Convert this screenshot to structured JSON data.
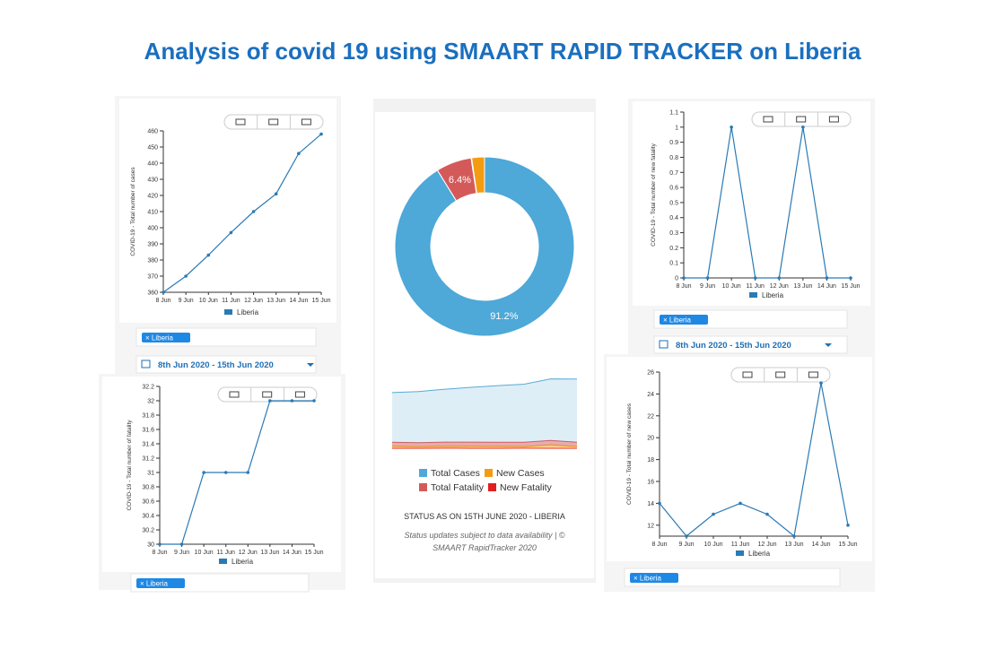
{
  "title": "Analysis of covid 19 using SMAART RAPID TRACKER on Liberia",
  "chart_data": [
    {
      "type": "line",
      "y_label": "COVID-19 - Total number of cases",
      "categories": [
        "8 Jun",
        "9 Jun",
        "10 Jun",
        "11 Jun",
        "12 Jun",
        "13 Jun",
        "14 Jun",
        "15 Jun"
      ],
      "series": [
        {
          "name": "Liberia",
          "color": "#2a7ab5",
          "values": [
            360,
            370,
            383,
            397,
            410,
            421,
            446,
            458
          ]
        }
      ],
      "ylim": [
        360,
        460
      ],
      "yticks": [
        360,
        370,
        380,
        390,
        400,
        410,
        420,
        430,
        440,
        450,
        460
      ],
      "chip": "× Liberia",
      "date_range": "8th Jun 2020 - 15th Jun 2020"
    },
    {
      "type": "line",
      "y_label": "COVID-19 - Total number of fatality",
      "categories": [
        "8 Jun",
        "9 Jun",
        "10 Jun",
        "11 Jun",
        "12 Jun",
        "13 Jun",
        "14 Jun",
        "15 Jun"
      ],
      "series": [
        {
          "name": "Liberia",
          "color": "#2a7ab5",
          "values": [
            30,
            30,
            31,
            31,
            31,
            32,
            32,
            32
          ]
        }
      ],
      "ylim": [
        30,
        32.2
      ],
      "yticks": [
        30,
        30.2,
        30.4,
        30.6,
        30.8,
        31,
        31.2,
        31.4,
        31.6,
        31.8,
        32,
        32.2
      ],
      "chip": "× Liberia"
    },
    {
      "type": "line",
      "y_label": "COVID-19 - Total number of new fatality",
      "categories": [
        "8 Jun",
        "9 Jun",
        "10 Jun",
        "11 Jun",
        "12 Jun",
        "13 Jun",
        "14 Jun",
        "15 Jun"
      ],
      "series": [
        {
          "name": "Liberia",
          "color": "#2a7ab5",
          "values": [
            0,
            0,
            1,
            0,
            0,
            1,
            0,
            0
          ]
        }
      ],
      "ylim": [
        0,
        1.1
      ],
      "yticks": [
        0,
        0.1,
        0.2,
        0.3,
        0.4,
        0.5,
        0.6,
        0.7,
        0.8,
        0.9,
        1,
        1.1
      ],
      "chip": "× Liberia",
      "date_range": "8th Jun 2020 - 15th Jun 2020"
    },
    {
      "type": "line",
      "y_label": "COVID-19 - Total number of new cases",
      "categories": [
        "8 Jun",
        "9 Jun",
        "10 Jun",
        "11 Jun",
        "12 Jun",
        "13 Jun",
        "14 Jun",
        "15 Jun"
      ],
      "series": [
        {
          "name": "Liberia",
          "color": "#2a7ab5",
          "values": [
            14,
            11,
            13,
            14,
            13,
            11,
            25,
            12
          ]
        }
      ],
      "ylim": [
        11,
        26
      ],
      "yticks": [
        12,
        14,
        16,
        18,
        20,
        22,
        24,
        26
      ],
      "chip": "× Liberia"
    },
    {
      "type": "pie",
      "categories": [
        "Total Cases",
        "Total Fatality",
        "New Fatality",
        "New Cases"
      ],
      "values": [
        91.2,
        6.4,
        0.1,
        2.3
      ],
      "value_labels": [
        "91.2%",
        "6.4%",
        null,
        null
      ],
      "colors": [
        "#4ea8d8",
        "#d45a5a",
        "#e21f1f",
        "#f39c12"
      ],
      "status": "STATUS AS ON 15TH JUNE 2020 - LIBERIA",
      "footnote": [
        "Status updates subject to data availability | ©",
        "SMAART RapidTracker 2020"
      ]
    },
    {
      "type": "area",
      "ylim": [
        0,
        520
      ],
      "series": [
        {
          "color": "#5aaad6",
          "values": [
            360,
            370,
            383,
            397,
            410,
            421,
            446,
            458
          ]
        },
        {
          "color": "#d45a5a",
          "values": [
            30,
            30,
            31,
            31,
            31,
            32,
            32,
            32
          ]
        },
        {
          "color": "#f39c12",
          "values": [
            14,
            11,
            13,
            14,
            13,
            11,
            25,
            12
          ]
        },
        {
          "color": "#e21f1f",
          "values": [
            0,
            0,
            1,
            0,
            0,
            1,
            0,
            0
          ]
        }
      ]
    }
  ]
}
